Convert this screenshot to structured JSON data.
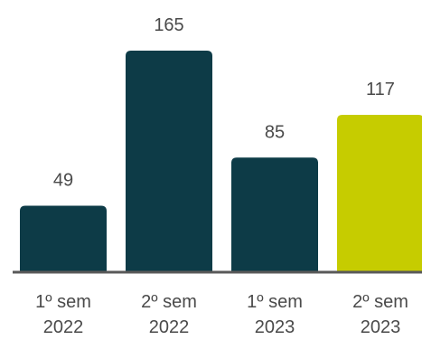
{
  "chart_data": {
    "type": "bar",
    "categories": [
      [
        "1º sem",
        "2022"
      ],
      [
        "2º sem",
        "2022"
      ],
      [
        "1º sem",
        "2023"
      ],
      [
        "2º sem",
        "2023"
      ]
    ],
    "values": [
      49,
      165,
      85,
      117
    ],
    "data_labels": [
      "49",
      "165",
      "85",
      "117"
    ],
    "bar_colors": [
      "#0d3b47",
      "#0d3b47",
      "#0d3b47",
      "#c6cc00"
    ],
    "axis_color": "#595959",
    "grid": false,
    "legend": "none",
    "ylim": [
      0,
      165
    ]
  }
}
